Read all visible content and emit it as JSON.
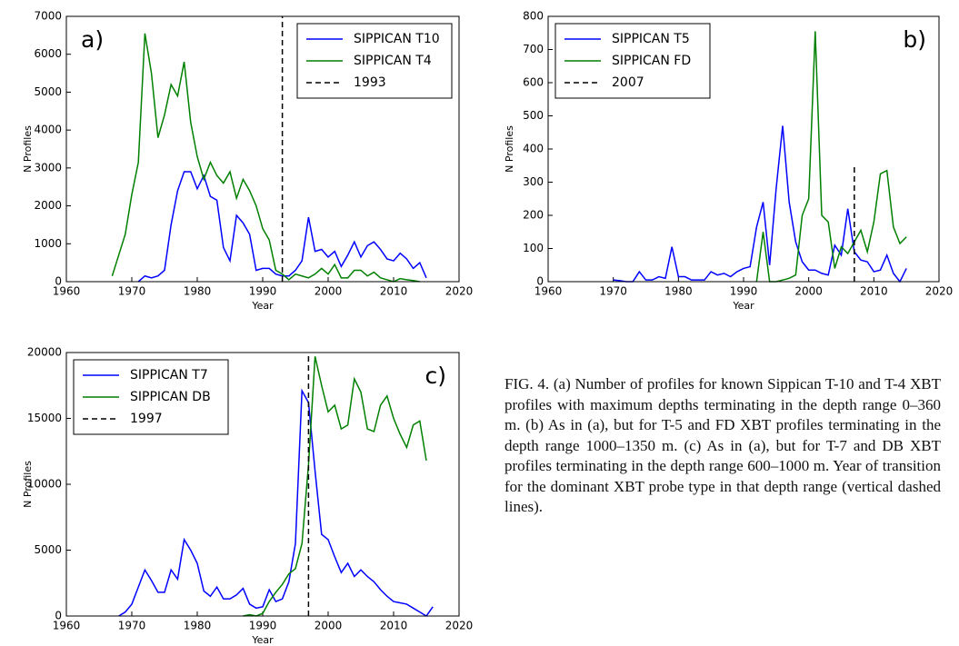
{
  "chart_data": [
    {
      "type": "line",
      "label": "a)",
      "xlabel": "Year",
      "ylabel": "N Profiles",
      "xlim": [
        1960,
        2020
      ],
      "xticks": [
        1960,
        1970,
        1980,
        1990,
        2000,
        2010,
        2020
      ],
      "ylim": [
        0,
        7000
      ],
      "yticks": [
        0,
        1000,
        2000,
        3000,
        4000,
        5000,
        6000,
        7000
      ],
      "legend": "upper right",
      "series": [
        {
          "name": "SIPPICAN T10",
          "color": "#0000ff",
          "x": [
            1971,
            1972,
            1973,
            1974,
            1975,
            1976,
            1977,
            1978,
            1979,
            1980,
            1981,
            1982,
            1983,
            1984,
            1985,
            1986,
            1987,
            1988,
            1989,
            1990,
            1991,
            1992,
            1993,
            1994,
            1995,
            1996,
            1997,
            1998,
            1999,
            2000,
            2001,
            2002,
            2003,
            2004,
            2005,
            2006,
            2007,
            2008,
            2009,
            2010,
            2011,
            2012,
            2013,
            2014,
            2015
          ],
          "values": [
            0,
            150,
            100,
            150,
            300,
            1500,
            2400,
            2900,
            2900,
            2450,
            2800,
            2250,
            2150,
            900,
            550,
            1750,
            1550,
            1250,
            300,
            350,
            350,
            200,
            150,
            150,
            300,
            550,
            1700,
            800,
            850,
            650,
            800,
            400,
            700,
            1050,
            650,
            950,
            1050,
            850,
            600,
            550,
            750,
            600,
            350,
            500,
            100
          ]
        },
        {
          "name": "SIPPICAN T4",
          "color": "#008000",
          "x": [
            1967,
            1968,
            1969,
            1970,
            1971,
            1972,
            1973,
            1974,
            1975,
            1976,
            1977,
            1978,
            1979,
            1980,
            1981,
            1982,
            1983,
            1984,
            1985,
            1986,
            1987,
            1988,
            1989,
            1990,
            1991,
            1992,
            1993,
            1994,
            1995,
            1996,
            1997,
            1998,
            1999,
            2000,
            2001,
            2002,
            2003,
            2004,
            2005,
            2006,
            2007,
            2008,
            2009,
            2010,
            2011,
            2012,
            2013,
            2014
          ],
          "values": [
            150,
            700,
            1250,
            2300,
            3150,
            6550,
            5500,
            3800,
            4400,
            5200,
            4900,
            5800,
            4200,
            3300,
            2700,
            3150,
            2800,
            2600,
            2900,
            2200,
            2700,
            2400,
            2000,
            1400,
            1100,
            300,
            200,
            50,
            200,
            150,
            100,
            200,
            350,
            200,
            450,
            100,
            100,
            300,
            300,
            150,
            250,
            100,
            50,
            0,
            80,
            50,
            30,
            0
          ]
        }
      ],
      "vline": {
        "name": "1993",
        "x": 1993
      }
    },
    {
      "type": "line",
      "label": "b)",
      "xlabel": "Year",
      "ylabel": "N Profiles",
      "xlim": [
        1960,
        2020
      ],
      "xticks": [
        1960,
        1970,
        1980,
        1990,
        2000,
        2010,
        2020
      ],
      "ylim": [
        0,
        800
      ],
      "yticks": [
        0,
        100,
        200,
        300,
        400,
        500,
        600,
        700,
        800
      ],
      "legend": "upper left",
      "series": [
        {
          "name": "SIPPICAN T5",
          "color": "#0000ff",
          "x": [
            1970,
            1971,
            1972,
            1973,
            1974,
            1975,
            1976,
            1977,
            1978,
            1979,
            1980,
            1981,
            1982,
            1983,
            1984,
            1985,
            1986,
            1987,
            1988,
            1989,
            1990,
            1991,
            1992,
            1993,
            1994,
            1995,
            1996,
            1997,
            1998,
            1999,
            2000,
            2001,
            2002,
            2003,
            2004,
            2005,
            2006,
            2007,
            2008,
            2009,
            2010,
            2011,
            2012,
            2013,
            2014,
            2015
          ],
          "values": [
            5,
            3,
            0,
            0,
            30,
            5,
            5,
            15,
            10,
            105,
            15,
            15,
            5,
            5,
            5,
            30,
            20,
            25,
            15,
            30,
            40,
            45,
            165,
            240,
            50,
            280,
            470,
            240,
            120,
            60,
            35,
            35,
            25,
            20,
            110,
            80,
            220,
            90,
            65,
            60,
            30,
            35,
            80,
            25,
            0,
            40
          ]
        },
        {
          "name": "SIPPICAN FD",
          "color": "#008000",
          "x": [
            1992,
            1993,
            1994,
            1995,
            1996,
            1997,
            1998,
            1999,
            2000,
            2001,
            2002,
            2003,
            2004,
            2005,
            2006,
            2007,
            2008,
            2009,
            2010,
            2011,
            2012,
            2013,
            2014,
            2015
          ],
          "values": [
            0,
            150,
            0,
            0,
            5,
            10,
            20,
            200,
            250,
            755,
            200,
            180,
            40,
            105,
            85,
            120,
            155,
            90,
            180,
            325,
            335,
            165,
            115,
            135
          ]
        }
      ],
      "vline": {
        "name": "2007",
        "x": 2007,
        "span": [
          0,
          350
        ]
      }
    },
    {
      "type": "line",
      "label": "c)",
      "xlabel": "Year",
      "ylabel": "N Profiles",
      "xlim": [
        1960,
        2020
      ],
      "xticks": [
        1960,
        1970,
        1980,
        1990,
        2000,
        2010,
        2020
      ],
      "ylim": [
        0,
        20000
      ],
      "yticks": [
        0,
        5000,
        10000,
        15000,
        20000
      ],
      "legend": "upper left",
      "series": [
        {
          "name": "SIPPICAN T7",
          "color": "#0000ff",
          "x": [
            1968,
            1969,
            1970,
            1971,
            1972,
            1973,
            1974,
            1975,
            1976,
            1977,
            1978,
            1979,
            1980,
            1981,
            1982,
            1983,
            1984,
            1985,
            1986,
            1987,
            1988,
            1989,
            1990,
            1991,
            1992,
            1993,
            1994,
            1995,
            1996,
            1997,
            1998,
            1999,
            2000,
            2001,
            2002,
            2003,
            2004,
            2005,
            2006,
            2007,
            2008,
            2009,
            2010,
            2011,
            2012,
            2013,
            2014,
            2015,
            2016
          ],
          "values": [
            0,
            300,
            900,
            2200,
            3500,
            2700,
            1800,
            1800,
            3500,
            2800,
            5800,
            5000,
            4000,
            1900,
            1500,
            2200,
            1300,
            1300,
            1600,
            2100,
            900,
            600,
            700,
            2000,
            1100,
            1300,
            2600,
            5500,
            17100,
            16200,
            11000,
            6200,
            5800,
            4500,
            3300,
            4000,
            3000,
            3500,
            3000,
            2600,
            2000,
            1500,
            1100,
            1000,
            900,
            600,
            300,
            0,
            700
          ]
        },
        {
          "name": "SIPPICAN DB",
          "color": "#008000",
          "x": [
            1987,
            1988,
            1989,
            1990,
            1991,
            1992,
            1993,
            1994,
            1995,
            1996,
            1997,
            1998,
            1999,
            2000,
            2001,
            2002,
            2003,
            2004,
            2005,
            2006,
            2007,
            2008,
            2009,
            2010,
            2011,
            2012,
            2013,
            2014,
            2015
          ],
          "values": [
            0,
            100,
            0,
            200,
            1100,
            1800,
            2400,
            3200,
            3600,
            5500,
            11500,
            19700,
            17500,
            15500,
            16000,
            14200,
            14500,
            18000,
            17000,
            14200,
            14000,
            16000,
            16700,
            15000,
            13800,
            12800,
            14500,
            14800,
            11800
          ]
        }
      ],
      "vline": {
        "name": "1997",
        "x": 1997
      }
    }
  ],
  "caption": "FIG. 4. (a) Number of profiles for known Sippican T-10 and T-4 XBT profiles with maximum depths terminating in the depth range 0–360 m. (b) As in (a), but for T-5 and FD XBT profiles terminating in the depth range 1000–1350 m. (c) As in (a), but for T-7 and DB XBT profiles terminating in the depth range 600–1000 m. Year of transition for the dominant XBT probe type in that depth range (vertical dashed lines)."
}
